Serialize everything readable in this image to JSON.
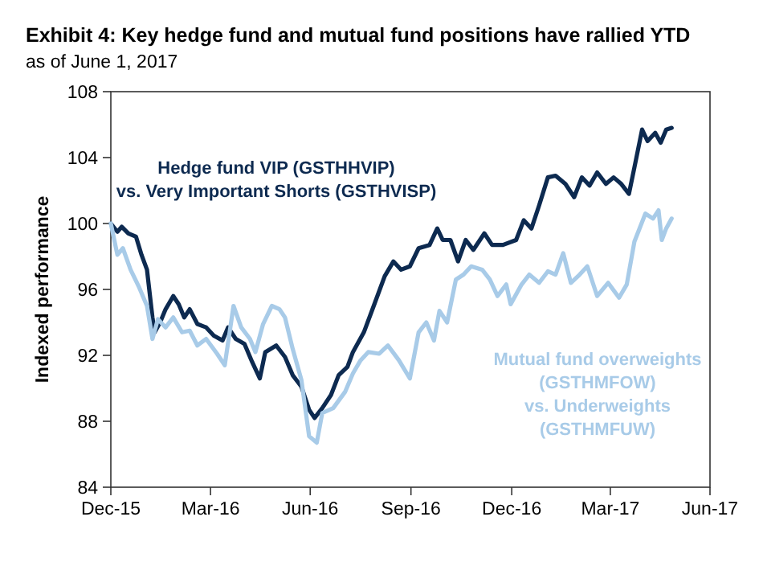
{
  "chart_data": {
    "type": "line",
    "title": "Exhibit 4: Key hedge fund and mutual fund positions have rallied YTD",
    "subtitle": "as of June 1, 2017",
    "ylabel": "Indexed performance",
    "xlim": [
      "2015-12-31",
      "2017-06-30"
    ],
    "xticks": [
      {
        "value": "2015-12-31",
        "label": "Dec-15"
      },
      {
        "value": "2016-03-31",
        "label": "Mar-16"
      },
      {
        "value": "2016-06-30",
        "label": "Jun-16"
      },
      {
        "value": "2016-09-30",
        "label": "Sep-16"
      },
      {
        "value": "2016-12-31",
        "label": "Dec-16"
      },
      {
        "value": "2017-03-31",
        "label": "Mar-17"
      },
      {
        "value": "2017-06-30",
        "label": "Jun-17"
      }
    ],
    "ylim": [
      84,
      108
    ],
    "yticks": [
      84,
      88,
      92,
      96,
      100,
      104,
      108
    ],
    "grid": false,
    "legend": false,
    "series": [
      {
        "name": "Hedge fund VIP (GSTHHVIP)\nvs. Very Important Shorts (GSTHVISP)",
        "color": "#0d2a50",
        "x": [
          "2015-12-31",
          "2016-01-06",
          "2016-01-10",
          "2016-01-16",
          "2016-01-23",
          "2016-01-28",
          "2016-02-02",
          "2016-02-07",
          "2016-02-09",
          "2016-02-14",
          "2016-02-19",
          "2016-02-26",
          "2016-03-02",
          "2016-03-07",
          "2016-03-12",
          "2016-03-19",
          "2016-03-27",
          "2016-04-03",
          "2016-04-11",
          "2016-04-16",
          "2016-04-23",
          "2016-05-01",
          "2016-05-08",
          "2016-05-15",
          "2016-05-20",
          "2016-05-30",
          "2016-06-07",
          "2016-06-14",
          "2016-06-22",
          "2016-06-29",
          "2016-07-04",
          "2016-07-11",
          "2016-07-19",
          "2016-07-26",
          "2016-08-03",
          "2016-08-08",
          "2016-08-18",
          "2016-08-27",
          "2016-09-06",
          "2016-09-14",
          "2016-09-21",
          "2016-09-29",
          "2016-10-07",
          "2016-10-17",
          "2016-10-24",
          "2016-10-29",
          "2016-11-05",
          "2016-11-12",
          "2016-11-19",
          "2016-11-26",
          "2016-12-06",
          "2016-12-13",
          "2016-12-23",
          "2017-01-04",
          "2017-01-11",
          "2017-01-18",
          "2017-01-25",
          "2017-02-02",
          "2017-02-09",
          "2017-02-18",
          "2017-02-26",
          "2017-03-05",
          "2017-03-12",
          "2017-03-19",
          "2017-03-27",
          "2017-04-03",
          "2017-04-10",
          "2017-04-17",
          "2017-04-22",
          "2017-04-29",
          "2017-05-04",
          "2017-05-11",
          "2017-05-16",
          "2017-05-21",
          "2017-05-26"
        ],
        "values": [
          100,
          99.5,
          99.8,
          99.4,
          99.2,
          98.1,
          97.2,
          94.3,
          93.4,
          94.0,
          94.8,
          95.6,
          95.1,
          94.3,
          94.8,
          93.9,
          93.7,
          93.2,
          92.9,
          93.7,
          93.0,
          92.7,
          91.6,
          90.6,
          92.2,
          92.6,
          91.9,
          90.8,
          90.1,
          88.7,
          88.2,
          88.8,
          89.6,
          90.8,
          91.3,
          92.2,
          93.4,
          95.0,
          96.8,
          97.7,
          97.2,
          97.4,
          98.5,
          98.7,
          99.7,
          99.0,
          99.0,
          97.7,
          99.0,
          98.4,
          99.4,
          98.7,
          98.7,
          99.0,
          100.2,
          99.7,
          101.1,
          102.8,
          102.9,
          102.4,
          101.6,
          102.8,
          102.3,
          103.1,
          102.4,
          102.8,
          102.4,
          101.8,
          103.4,
          105.7,
          105.0,
          105.5,
          104.9,
          105.7,
          105.8
        ]
      },
      {
        "name": "Mutual fund overweights\n(GSTHMFOW)\nvs. Underweights\n(GSTHMFUW)",
        "color": "#a8cbe8",
        "x": [
          "2015-12-31",
          "2016-01-06",
          "2016-01-11",
          "2016-01-18",
          "2016-01-26",
          "2016-02-02",
          "2016-02-07",
          "2016-02-12",
          "2016-02-19",
          "2016-02-26",
          "2016-03-05",
          "2016-03-12",
          "2016-03-19",
          "2016-03-27",
          "2016-04-06",
          "2016-04-13",
          "2016-04-21",
          "2016-04-28",
          "2016-05-06",
          "2016-05-11",
          "2016-05-18",
          "2016-05-26",
          "2016-06-02",
          "2016-06-07",
          "2016-06-14",
          "2016-06-22",
          "2016-06-29",
          "2016-07-06",
          "2016-07-11",
          "2016-07-21",
          "2016-08-01",
          "2016-08-08",
          "2016-08-15",
          "2016-08-22",
          "2016-09-01",
          "2016-09-09",
          "2016-09-19",
          "2016-09-29",
          "2016-10-07",
          "2016-10-14",
          "2016-10-21",
          "2016-10-26",
          "2016-11-02",
          "2016-11-10",
          "2016-11-17",
          "2016-11-24",
          "2016-12-04",
          "2016-12-11",
          "2016-12-18",
          "2016-12-26",
          "2016-12-30",
          "2017-01-09",
          "2017-01-16",
          "2017-01-25",
          "2017-02-02",
          "2017-02-09",
          "2017-02-16",
          "2017-02-23",
          "2017-03-03",
          "2017-03-10",
          "2017-03-19",
          "2017-03-29",
          "2017-04-08",
          "2017-04-15",
          "2017-04-22",
          "2017-05-02",
          "2017-05-09",
          "2017-05-14",
          "2017-05-17",
          "2017-05-21",
          "2017-05-26"
        ],
        "values": [
          100,
          98.1,
          98.5,
          97.2,
          96.1,
          95.0,
          93.0,
          94.2,
          93.7,
          94.3,
          93.4,
          93.5,
          92.6,
          93.0,
          92.1,
          91.4,
          95.0,
          93.7,
          93.0,
          92.2,
          93.9,
          95.0,
          94.8,
          94.3,
          92.4,
          90.5,
          87.1,
          86.7,
          88.5,
          88.8,
          89.8,
          90.9,
          91.7,
          92.2,
          92.1,
          92.6,
          91.7,
          90.6,
          93.4,
          94.0,
          92.9,
          94.7,
          94.0,
          96.6,
          96.9,
          97.4,
          97.2,
          96.6,
          95.6,
          96.3,
          95.1,
          96.3,
          96.9,
          96.4,
          97.1,
          96.9,
          98.2,
          96.4,
          96.9,
          97.4,
          95.6,
          96.4,
          95.5,
          96.3,
          98.9,
          100.6,
          100.3,
          100.8,
          99.0,
          99.7,
          100.3
        ]
      }
    ]
  }
}
